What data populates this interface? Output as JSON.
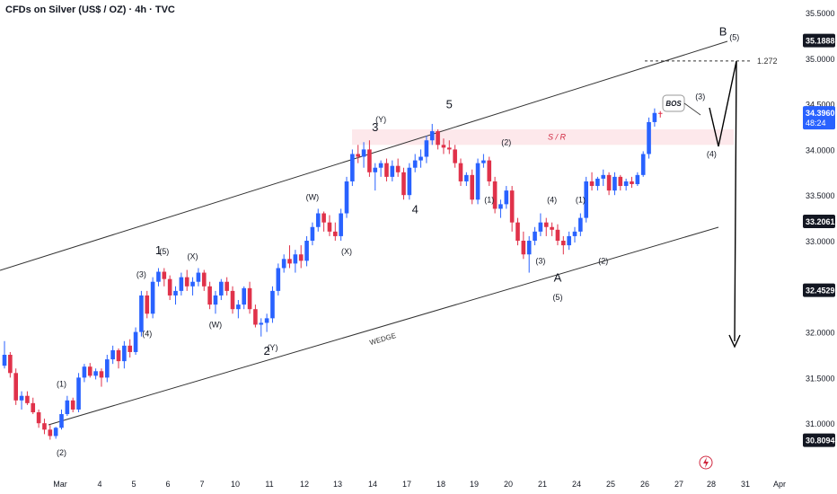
{
  "header": {
    "title": "CFDs on Silver (US$ / OZ) · 4h · TVC"
  },
  "colors": {
    "up": "#2962ff",
    "down": "#e0324a",
    "line": "#333333",
    "sr_zone": "#fde4e7",
    "sr_text": "#d02840",
    "badge": "#2962ff"
  },
  "chart_data": {
    "type": "candlestick",
    "ylim": [
      30.6,
      35.6
    ],
    "y_ticks": [
      "35.5000",
      "35.0000",
      "34.5000",
      "34.0000",
      "33.5000",
      "33.0000",
      "32.5000",
      "32.0000",
      "31.5000",
      "31.0000"
    ],
    "x_ticks": [
      "Mar",
      "4",
      "5",
      "6",
      "7",
      "10",
      "11",
      "12",
      "13",
      "14",
      "17",
      "18",
      "19",
      "20",
      "21",
      "24",
      "25",
      "26",
      "27",
      "28",
      "31",
      "Apr"
    ],
    "price_labels": [
      {
        "text": "35.1888",
        "style": "dark",
        "value": 35.1888
      },
      {
        "text": "34.3960",
        "sub": "48:24",
        "style": "blue",
        "value": 34.396
      },
      {
        "text": "33.2061",
        "style": "dark",
        "value": 33.2061
      },
      {
        "text": "32.4529",
        "style": "dark",
        "value": 32.4529
      },
      {
        "text": "30.8094",
        "style": "dark",
        "value": 30.8094
      }
    ],
    "candles": [
      [
        31.63,
        31.9,
        31.6,
        31.75
      ],
      [
        31.75,
        31.78,
        31.5,
        31.55
      ],
      [
        31.55,
        31.6,
        31.2,
        31.25
      ],
      [
        31.25,
        31.35,
        31.15,
        31.3
      ],
      [
        31.3,
        31.35,
        31.2,
        31.22
      ],
      [
        31.22,
        31.28,
        31.1,
        31.12
      ],
      [
        31.12,
        31.15,
        30.95,
        31.0
      ],
      [
        31.0,
        31.05,
        30.88,
        30.93
      ],
      [
        30.93,
        30.98,
        30.82,
        30.86
      ],
      [
        30.86,
        30.96,
        30.83,
        30.95
      ],
      [
        30.95,
        31.15,
        30.93,
        31.1
      ],
      [
        31.1,
        31.3,
        31.08,
        31.25
      ],
      [
        31.25,
        31.28,
        31.12,
        31.15
      ],
      [
        31.15,
        31.55,
        31.12,
        31.5
      ],
      [
        31.5,
        31.65,
        31.45,
        31.62
      ],
      [
        31.62,
        31.66,
        31.5,
        31.52
      ],
      [
        31.52,
        31.6,
        31.48,
        31.57
      ],
      [
        31.57,
        31.6,
        31.4,
        31.5
      ],
      [
        31.5,
        31.75,
        31.45,
        31.7
      ],
      [
        31.7,
        31.85,
        31.65,
        31.8
      ],
      [
        31.8,
        31.82,
        31.6,
        31.68
      ],
      [
        31.68,
        31.9,
        31.6,
        31.85
      ],
      [
        31.85,
        31.92,
        31.72,
        31.78
      ],
      [
        31.78,
        32.05,
        31.75,
        32.0
      ],
      [
        32.0,
        32.45,
        31.95,
        32.4
      ],
      [
        32.4,
        32.45,
        32.15,
        32.2
      ],
      [
        32.2,
        32.6,
        32.15,
        32.55
      ],
      [
        32.55,
        32.7,
        32.5,
        32.66
      ],
      [
        32.66,
        32.7,
        32.5,
        32.58
      ],
      [
        32.58,
        32.62,
        32.35,
        32.4
      ],
      [
        32.4,
        32.5,
        32.3,
        32.45
      ],
      [
        32.45,
        32.65,
        32.4,
        32.6
      ],
      [
        32.6,
        32.68,
        32.45,
        32.5
      ],
      [
        32.5,
        32.6,
        32.4,
        32.55
      ],
      [
        32.55,
        32.7,
        32.5,
        32.65
      ],
      [
        32.65,
        32.68,
        32.45,
        32.5
      ],
      [
        32.5,
        32.55,
        32.25,
        32.3
      ],
      [
        32.3,
        32.45,
        32.2,
        32.4
      ],
      [
        32.4,
        32.58,
        32.35,
        32.55
      ],
      [
        32.55,
        32.6,
        32.4,
        32.45
      ],
      [
        32.45,
        32.5,
        32.2,
        32.25
      ],
      [
        32.25,
        32.35,
        32.15,
        32.3
      ],
      [
        32.3,
        32.5,
        32.25,
        32.48
      ],
      [
        32.48,
        32.55,
        32.2,
        32.25
      ],
      [
        32.25,
        32.3,
        32.05,
        32.08
      ],
      [
        32.08,
        32.15,
        31.95,
        32.1
      ],
      [
        32.1,
        32.2,
        32.0,
        32.15
      ],
      [
        32.15,
        32.5,
        32.1,
        32.45
      ],
      [
        32.45,
        32.75,
        32.4,
        32.7
      ],
      [
        32.7,
        32.85,
        32.65,
        32.8
      ],
      [
        32.8,
        32.95,
        32.7,
        32.75
      ],
      [
        32.75,
        32.9,
        32.65,
        32.85
      ],
      [
        32.85,
        32.95,
        32.7,
        32.78
      ],
      [
        32.78,
        33.05,
        32.72,
        33.0
      ],
      [
        33.0,
        33.2,
        32.95,
        33.15
      ],
      [
        33.15,
        33.35,
        33.1,
        33.3
      ],
      [
        33.3,
        33.32,
        33.1,
        33.2
      ],
      [
        33.2,
        33.28,
        33.05,
        33.1
      ],
      [
        33.1,
        33.2,
        33.0,
        33.05
      ],
      [
        33.05,
        33.35,
        33.0,
        33.3
      ],
      [
        33.3,
        33.7,
        33.25,
        33.65
      ],
      [
        33.65,
        34.0,
        33.6,
        33.95
      ],
      [
        33.95,
        34.05,
        33.85,
        33.92
      ],
      [
        33.92,
        34.08,
        33.8,
        34.0
      ],
      [
        34.0,
        34.1,
        33.7,
        33.75
      ],
      [
        33.75,
        33.85,
        33.55,
        33.8
      ],
      [
        33.8,
        33.88,
        33.7,
        33.85
      ],
      [
        33.85,
        33.9,
        33.65,
        33.7
      ],
      [
        33.7,
        33.88,
        33.65,
        33.82
      ],
      [
        33.82,
        33.9,
        33.7,
        33.75
      ],
      [
        33.75,
        33.8,
        33.45,
        33.5
      ],
      [
        33.5,
        33.85,
        33.45,
        33.8
      ],
      [
        33.8,
        33.95,
        33.75,
        33.88
      ],
      [
        33.88,
        34.0,
        33.8,
        33.92
      ],
      [
        33.92,
        34.15,
        33.85,
        34.1
      ],
      [
        34.1,
        34.28,
        34.05,
        34.2
      ],
      [
        34.2,
        34.22,
        34.0,
        34.05
      ],
      [
        34.05,
        34.12,
        33.95,
        34.02
      ],
      [
        34.02,
        34.1,
        33.95,
        34.0
      ],
      [
        34.0,
        34.05,
        33.8,
        33.85
      ],
      [
        33.85,
        33.9,
        33.6,
        33.65
      ],
      [
        33.65,
        33.75,
        33.6,
        33.72
      ],
      [
        33.72,
        33.78,
        33.4,
        33.45
      ],
      [
        33.45,
        33.9,
        33.4,
        33.85
      ],
      [
        33.85,
        33.95,
        33.8,
        33.88
      ],
      [
        33.88,
        33.92,
        33.6,
        33.65
      ],
      [
        33.65,
        33.7,
        33.3,
        33.35
      ],
      [
        33.35,
        33.45,
        33.25,
        33.4
      ],
      [
        33.4,
        33.6,
        33.35,
        33.55
      ],
      [
        33.55,
        33.6,
        33.1,
        33.2
      ],
      [
        33.2,
        33.25,
        32.95,
        33.0
      ],
      [
        33.0,
        33.1,
        32.8,
        32.85
      ],
      [
        32.85,
        33.05,
        32.65,
        33.0
      ],
      [
        33.0,
        33.15,
        32.95,
        33.1
      ],
      [
        33.1,
        33.3,
        33.05,
        33.2
      ],
      [
        33.2,
        33.25,
        33.05,
        33.15
      ],
      [
        33.15,
        33.2,
        33.05,
        33.12
      ],
      [
        33.12,
        33.18,
        32.95,
        33.0
      ],
      [
        33.0,
        33.05,
        32.85,
        32.95
      ],
      [
        32.95,
        33.1,
        32.9,
        33.05
      ],
      [
        33.05,
        33.15,
        32.98,
        33.1
      ],
      [
        33.1,
        33.3,
        33.05,
        33.25
      ],
      [
        33.25,
        33.7,
        33.2,
        33.65
      ],
      [
        33.65,
        33.75,
        33.55,
        33.6
      ],
      [
        33.6,
        33.7,
        33.55,
        33.68
      ],
      [
        33.68,
        33.78,
        33.6,
        33.72
      ],
      [
        33.72,
        33.75,
        33.5,
        33.55
      ],
      [
        33.55,
        33.75,
        33.5,
        33.7
      ],
      [
        33.7,
        33.72,
        33.55,
        33.6
      ],
      [
        33.6,
        33.68,
        33.55,
        33.65
      ],
      [
        33.65,
        33.7,
        33.58,
        33.62
      ],
      [
        33.62,
        33.75,
        33.6,
        33.72
      ],
      [
        33.72,
        33.98,
        33.7,
        33.95
      ],
      [
        33.95,
        34.35,
        33.9,
        34.3
      ],
      [
        34.3,
        34.45,
        34.25,
        34.4
      ],
      [
        34.4,
        34.42,
        34.35,
        34.396
      ]
    ],
    "annotations": {
      "channel_label": "WEDGE",
      "sr_label": "S / R",
      "bos_label": "BOS",
      "fib_label": "1.272",
      "points": [
        {
          "text": "(1)",
          "i": 10,
          "y": 31.4,
          "size": 9
        },
        {
          "text": "(2)",
          "i": 10,
          "y": 30.65,
          "size": 9
        },
        {
          "text": "(3)",
          "i": 24,
          "y": 32.6,
          "size": 9
        },
        {
          "text": "(4)",
          "i": 25,
          "y": 31.95,
          "size": 9
        },
        {
          "text": "1",
          "i": 27,
          "y": 32.85,
          "size": 13
        },
        {
          "text": "(5)",
          "i": 28,
          "y": 32.85,
          "size": 9
        },
        {
          "text": "(X)",
          "i": 33,
          "y": 32.8,
          "size": 9
        },
        {
          "text": "(W)",
          "i": 37,
          "y": 32.05,
          "size": 9
        },
        {
          "text": "2",
          "i": 46,
          "y": 31.75,
          "size": 13
        },
        {
          "text": "(Y)",
          "i": 47,
          "y": 31.8,
          "size": 9
        },
        {
          "text": "(W)",
          "i": 54,
          "y": 33.45,
          "size": 9
        },
        {
          "text": "(X)",
          "i": 60,
          "y": 32.85,
          "size": 9
        },
        {
          "text": "3",
          "i": 65,
          "y": 34.2,
          "size": 13
        },
        {
          "text": "(Y)",
          "i": 66,
          "y": 34.3,
          "size": 9
        },
        {
          "text": "4",
          "i": 72,
          "y": 33.3,
          "size": 13
        },
        {
          "text": "5",
          "i": 78,
          "y": 34.45,
          "size": 13
        },
        {
          "text": "(2)",
          "i": 88,
          "y": 34.05,
          "size": 9
        },
        {
          "text": "(1)",
          "i": 85,
          "y": 33.42,
          "size": 9
        },
        {
          "text": "(4)",
          "i": 96,
          "y": 33.42,
          "size": 9
        },
        {
          "text": "(1)",
          "i": 101,
          "y": 33.42,
          "size": 9
        },
        {
          "text": "(3)",
          "i": 94,
          "y": 32.75,
          "size": 9
        },
        {
          "text": "A",
          "i": 97,
          "y": 32.55,
          "size": 13
        },
        {
          "text": "(5)",
          "i": 97,
          "y": 32.35,
          "size": 9
        },
        {
          "text": "(2)",
          "i": 105,
          "y": 32.75,
          "size": 9
        },
        {
          "text": "(3)",
          "i": 122,
          "y": 34.55,
          "size": 9
        },
        {
          "text": "(4)",
          "i": 124,
          "y": 33.92,
          "size": 9
        },
        {
          "text": "B",
          "i": 126,
          "y": 35.25,
          "size": 13
        },
        {
          "text": "(5)",
          "i": 128,
          "y": 35.2,
          "size": 9
        }
      ]
    }
  }
}
